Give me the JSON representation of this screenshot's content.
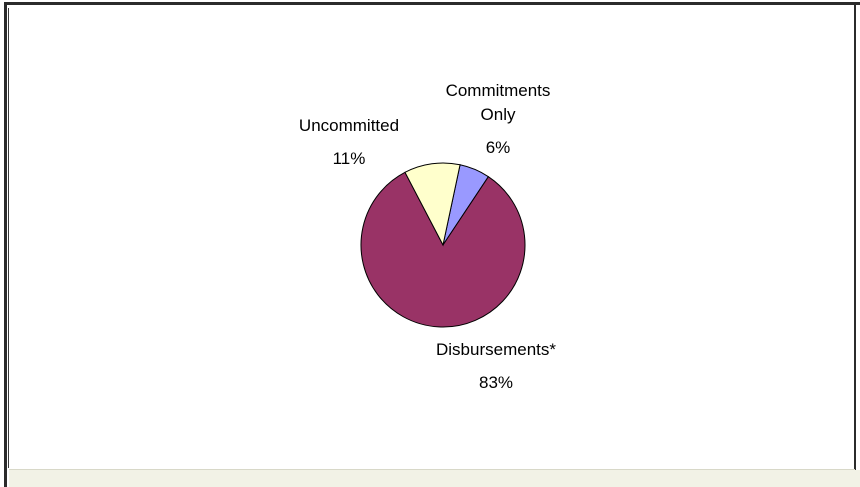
{
  "chart_data": {
    "type": "pie",
    "slices": [
      {
        "label_lines": [
          "Commitments",
          "Only"
        ],
        "percent_label": "6%",
        "value": 6,
        "color": "#9999ff"
      },
      {
        "label_lines": [
          "Disbursements*"
        ],
        "percent_label": "83%",
        "value": 83,
        "color": "#993366"
      },
      {
        "label_lines": [
          "Uncommitted"
        ],
        "percent_label": "11%",
        "value": 11,
        "color": "#ffffcc"
      }
    ]
  }
}
